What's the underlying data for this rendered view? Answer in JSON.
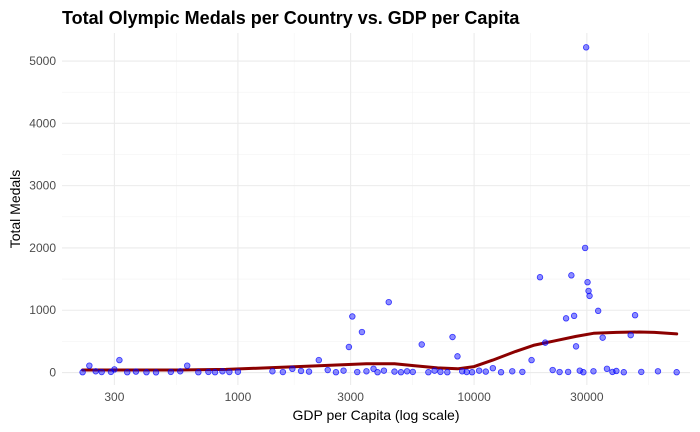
{
  "chart_data": {
    "type": "scatter",
    "title": "Total Olympic Medals per Country vs. GDP per Capita",
    "xlabel": "GDP per Capita (log scale)",
    "ylabel": "Total Medals",
    "x_scale": "log10",
    "xlim": [
      180,
      82000
    ],
    "ylim": [
      -200,
      5450
    ],
    "x_ticks": [
      300,
      1000,
      3000,
      10000,
      30000
    ],
    "x_tick_labels": [
      "300",
      "1000",
      "3000",
      "10000",
      "30000"
    ],
    "x_minor_ticks": [
      550,
      1730,
      5480,
      17300,
      54800
    ],
    "y_ticks": [
      0,
      1000,
      2000,
      3000,
      4000,
      5000
    ],
    "y_tick_labels": [
      "0",
      "1000",
      "2000",
      "3000",
      "4000",
      "5000"
    ],
    "y_minor_ticks": [
      500,
      1500,
      2500,
      3500,
      4500
    ],
    "grid": true,
    "legend": "none",
    "colors": {
      "points": "#0000ff",
      "smooth": "#8b0000",
      "grid": "#ebebeb"
    },
    "points": [
      {
        "x": 220,
        "y": 5
      },
      {
        "x": 235,
        "y": 110
      },
      {
        "x": 250,
        "y": 20
      },
      {
        "x": 265,
        "y": 8
      },
      {
        "x": 290,
        "y": 10
      },
      {
        "x": 300,
        "y": 50
      },
      {
        "x": 315,
        "y": 200
      },
      {
        "x": 340,
        "y": 5
      },
      {
        "x": 370,
        "y": 15
      },
      {
        "x": 410,
        "y": 5
      },
      {
        "x": 450,
        "y": 3
      },
      {
        "x": 520,
        "y": 10
      },
      {
        "x": 570,
        "y": 20
      },
      {
        "x": 610,
        "y": 110
      },
      {
        "x": 680,
        "y": 5
      },
      {
        "x": 750,
        "y": 10
      },
      {
        "x": 800,
        "y": 5
      },
      {
        "x": 860,
        "y": 20
      },
      {
        "x": 920,
        "y": 8
      },
      {
        "x": 1000,
        "y": 12
      },
      {
        "x": 1400,
        "y": 20
      },
      {
        "x": 1550,
        "y": 8
      },
      {
        "x": 1700,
        "y": 60
      },
      {
        "x": 1850,
        "y": 25
      },
      {
        "x": 2000,
        "y": 15
      },
      {
        "x": 2200,
        "y": 200
      },
      {
        "x": 2400,
        "y": 40
      },
      {
        "x": 2600,
        "y": 5
      },
      {
        "x": 2800,
        "y": 30
      },
      {
        "x": 2950,
        "y": 410
      },
      {
        "x": 3050,
        "y": 900
      },
      {
        "x": 3200,
        "y": 8
      },
      {
        "x": 3350,
        "y": 650
      },
      {
        "x": 3500,
        "y": 20
      },
      {
        "x": 3750,
        "y": 60
      },
      {
        "x": 3900,
        "y": 5
      },
      {
        "x": 4150,
        "y": 30
      },
      {
        "x": 4350,
        "y": 1130
      },
      {
        "x": 4600,
        "y": 15
      },
      {
        "x": 4900,
        "y": 5
      },
      {
        "x": 5200,
        "y": 20
      },
      {
        "x": 5500,
        "y": 10
      },
      {
        "x": 6000,
        "y": 450
      },
      {
        "x": 6400,
        "y": 5
      },
      {
        "x": 6800,
        "y": 30
      },
      {
        "x": 7200,
        "y": 10
      },
      {
        "x": 7700,
        "y": 5
      },
      {
        "x": 8100,
        "y": 570
      },
      {
        "x": 8500,
        "y": 260
      },
      {
        "x": 8900,
        "y": 20
      },
      {
        "x": 9300,
        "y": 8
      },
      {
        "x": 9800,
        "y": 5
      },
      {
        "x": 10500,
        "y": 30
      },
      {
        "x": 11200,
        "y": 15
      },
      {
        "x": 12000,
        "y": 70
      },
      {
        "x": 13000,
        "y": 5
      },
      {
        "x": 14500,
        "y": 20
      },
      {
        "x": 16000,
        "y": 10
      },
      {
        "x": 17500,
        "y": 200
      },
      {
        "x": 19000,
        "y": 1530
      },
      {
        "x": 20000,
        "y": 480
      },
      {
        "x": 21500,
        "y": 40
      },
      {
        "x": 23000,
        "y": 8
      },
      {
        "x": 24500,
        "y": 870
      },
      {
        "x": 25000,
        "y": 10
      },
      {
        "x": 25800,
        "y": 1560
      },
      {
        "x": 26500,
        "y": 910
      },
      {
        "x": 27000,
        "y": 420
      },
      {
        "x": 28000,
        "y": 30
      },
      {
        "x": 29000,
        "y": 5
      },
      {
        "x": 29500,
        "y": 2000
      },
      {
        "x": 29800,
        "y": 5220
      },
      {
        "x": 30200,
        "y": 1450
      },
      {
        "x": 30500,
        "y": 1310
      },
      {
        "x": 30800,
        "y": 1230
      },
      {
        "x": 32000,
        "y": 20
      },
      {
        "x": 33500,
        "y": 990
      },
      {
        "x": 35000,
        "y": 560
      },
      {
        "x": 36500,
        "y": 60
      },
      {
        "x": 38500,
        "y": 10
      },
      {
        "x": 40000,
        "y": 25
      },
      {
        "x": 43000,
        "y": 5
      },
      {
        "x": 46000,
        "y": 600
      },
      {
        "x": 48000,
        "y": 920
      },
      {
        "x": 51000,
        "y": 10
      },
      {
        "x": 60000,
        "y": 20
      },
      {
        "x": 72000,
        "y": 5
      }
    ],
    "smooth_line": [
      {
        "x": 220,
        "y": 40
      },
      {
        "x": 350,
        "y": 40
      },
      {
        "x": 560,
        "y": 40
      },
      {
        "x": 890,
        "y": 50
      },
      {
        "x": 1400,
        "y": 80
      },
      {
        "x": 2200,
        "y": 110
      },
      {
        "x": 3500,
        "y": 140
      },
      {
        "x": 4600,
        "y": 140
      },
      {
        "x": 5600,
        "y": 110
      },
      {
        "x": 7000,
        "y": 75
      },
      {
        "x": 8500,
        "y": 60
      },
      {
        "x": 10000,
        "y": 95
      },
      {
        "x": 12000,
        "y": 200
      },
      {
        "x": 15000,
        "y": 340
      },
      {
        "x": 18000,
        "y": 440
      },
      {
        "x": 22000,
        "y": 510
      },
      {
        "x": 27000,
        "y": 580
      },
      {
        "x": 32000,
        "y": 630
      },
      {
        "x": 40000,
        "y": 645
      },
      {
        "x": 50000,
        "y": 650
      },
      {
        "x": 58000,
        "y": 645
      },
      {
        "x": 72000,
        "y": 620
      }
    ]
  }
}
